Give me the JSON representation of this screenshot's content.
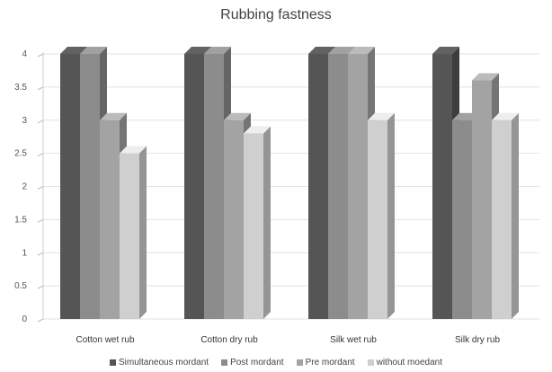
{
  "chart_data": {
    "type": "bar",
    "title": "Rubbing fastness",
    "xlabel": "",
    "ylabel": "",
    "ylim": [
      0,
      4
    ],
    "yticks": [
      0,
      0.5,
      1,
      1.5,
      2,
      2.5,
      3,
      3.5,
      4
    ],
    "categories": [
      "Cotton wet rub",
      "Cotton dry rub",
      "Silk wet rub",
      "Silk dry rub"
    ],
    "series": [
      {
        "name": "Simultaneous mordant",
        "values": [
          4,
          4,
          4,
          4
        ],
        "color": "#555555"
      },
      {
        "name": "Post mordant",
        "values": [
          4,
          4,
          4,
          3
        ],
        "color": "#8c8c8c"
      },
      {
        "name": "Pre mordant",
        "values": [
          3,
          3,
          4,
          3.6
        ],
        "color": "#a3a3a3"
      },
      {
        "name": "without moedant",
        "values": [
          2.5,
          2.8,
          3,
          3
        ],
        "color": "#cfcfcf"
      }
    ],
    "grid": true,
    "legend_position": "bottom"
  }
}
